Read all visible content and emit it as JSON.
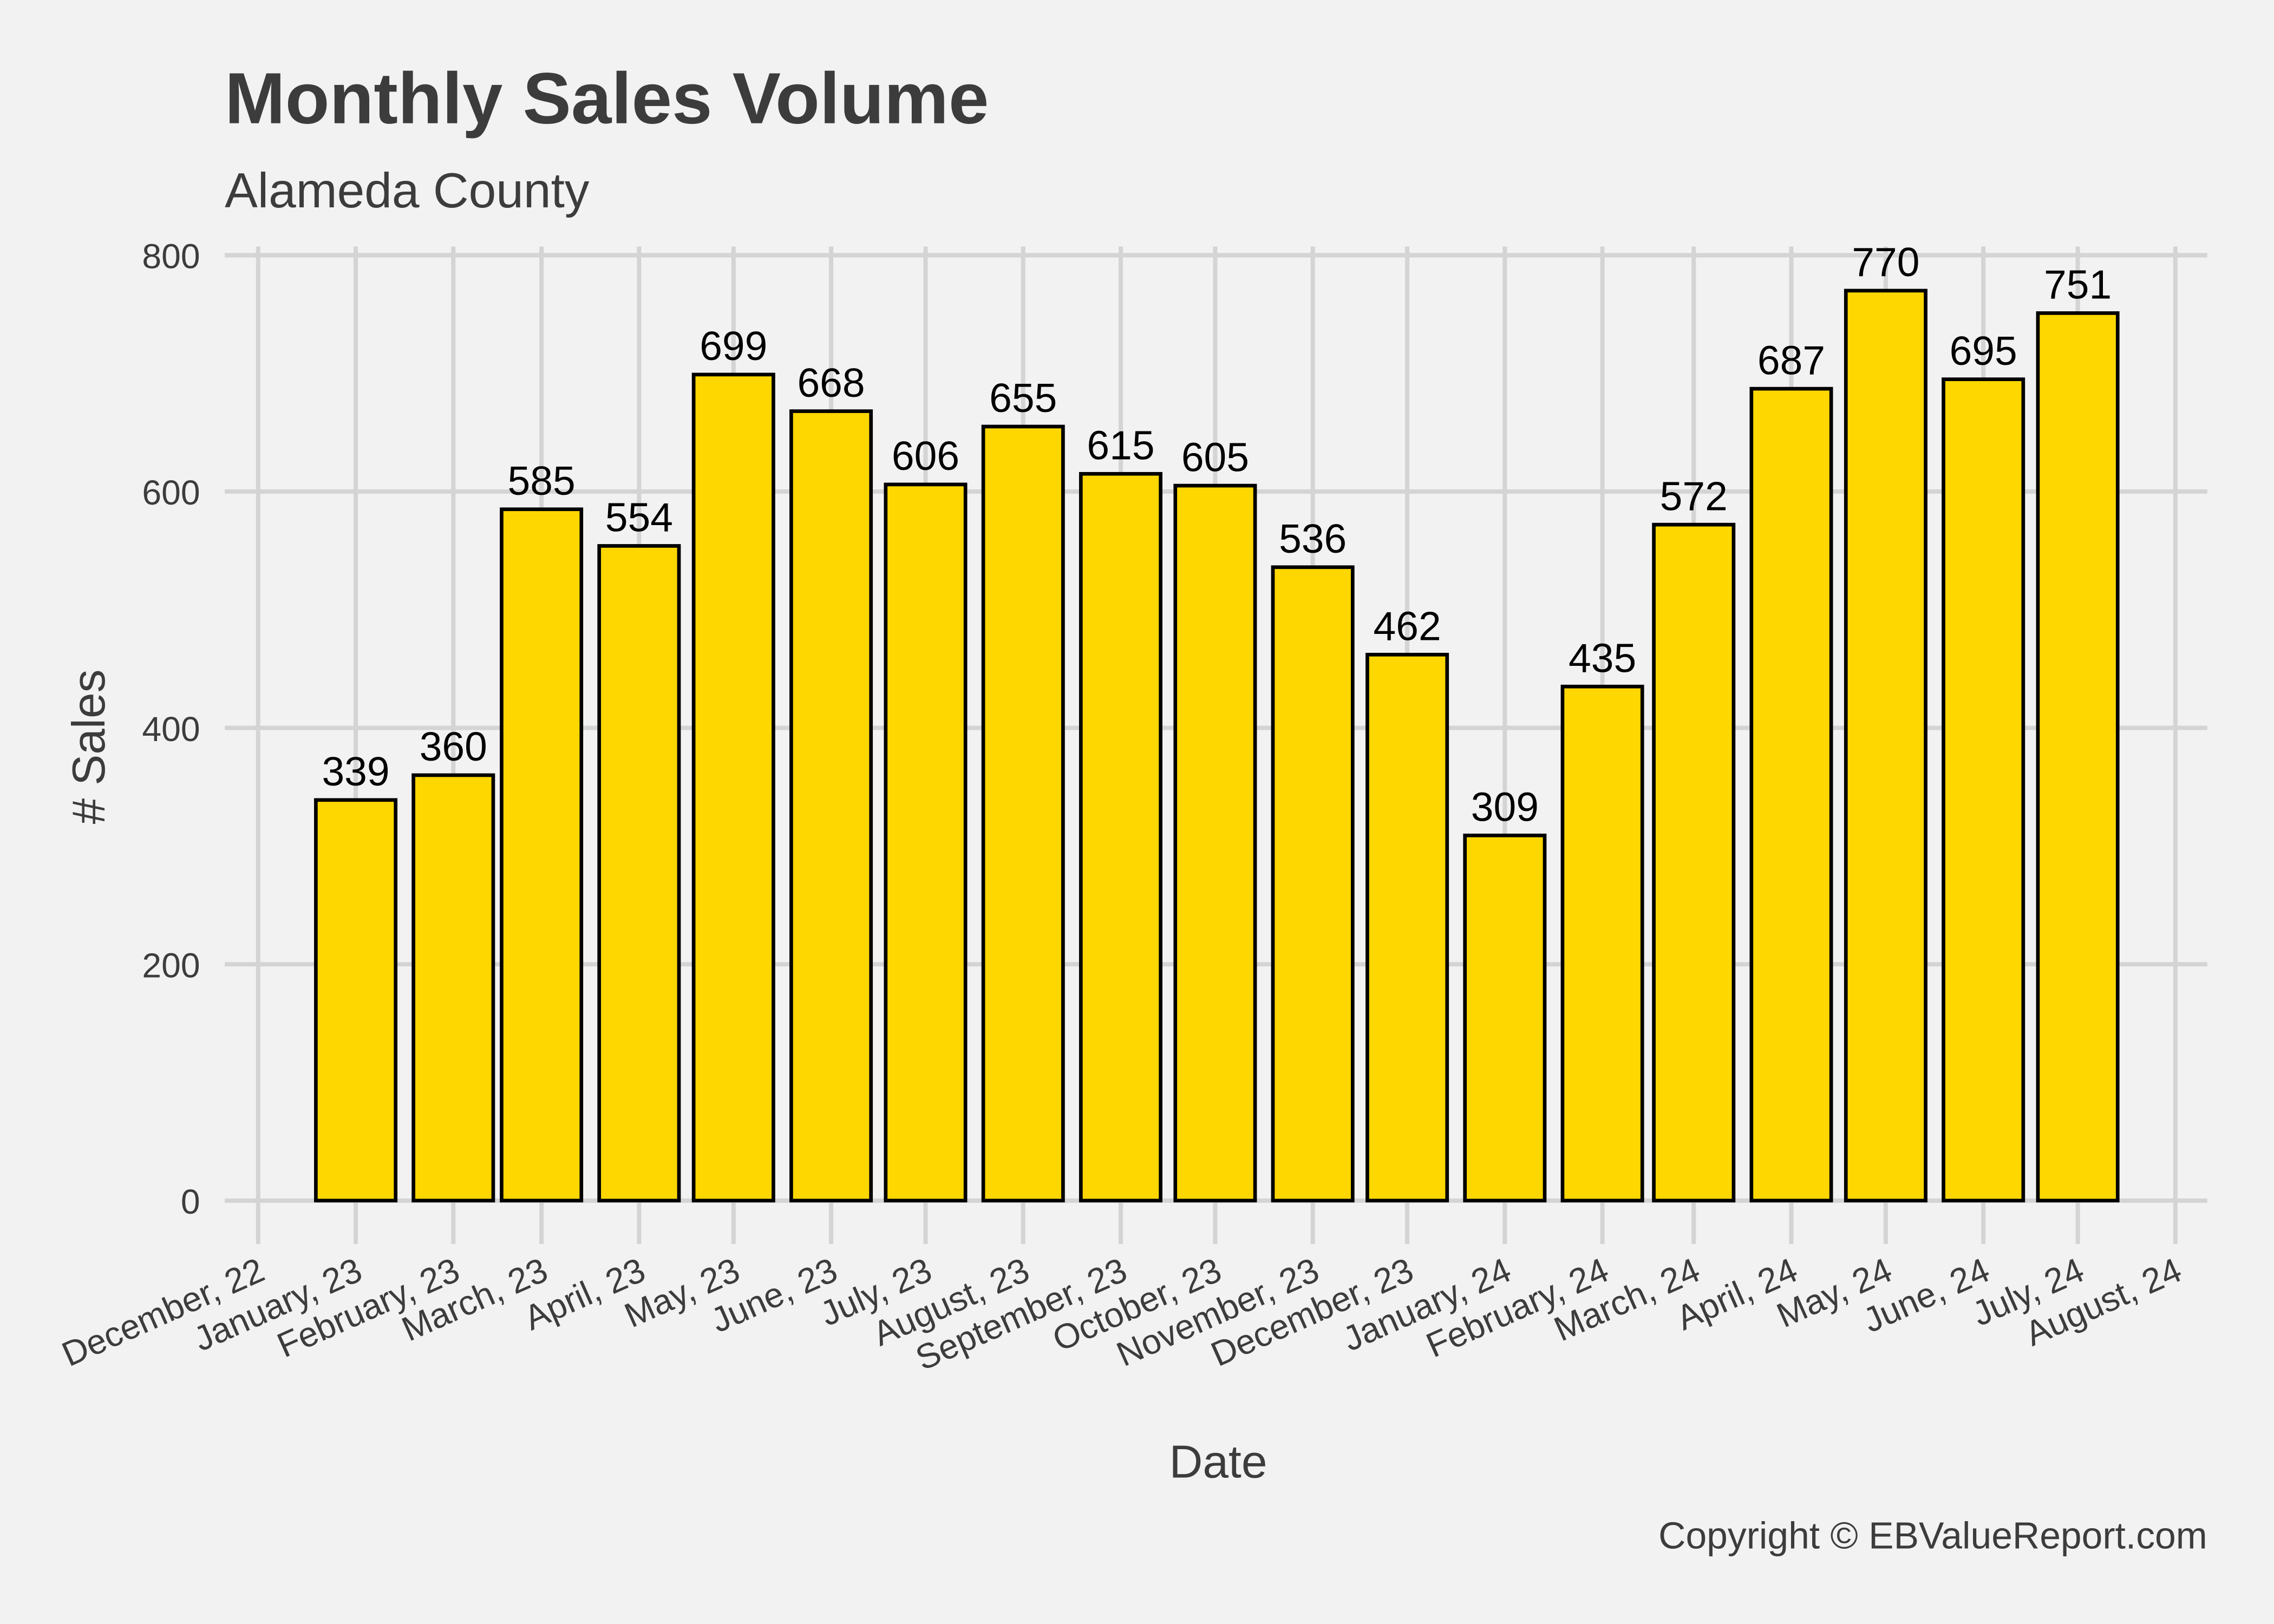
{
  "chart_data": {
    "type": "bar",
    "title": "Monthly Sales Volume",
    "subtitle": "Alameda County",
    "xlabel": "Date",
    "ylabel": "# Sales",
    "caption": "Copyright  © EBValueReport.com",
    "ylim": [
      0,
      800
    ],
    "yticks": [
      0,
      200,
      400,
      600,
      800
    ],
    "grid": true,
    "bar_color": "#ffd700",
    "bar_outline": "#000000",
    "background": "#f2f2f2",
    "xtick_dates": [
      "2022-12-01",
      "2023-01-01",
      "2023-02-01",
      "2023-03-01",
      "2023-04-01",
      "2023-05-01",
      "2023-06-01",
      "2023-07-01",
      "2023-08-01",
      "2023-09-01",
      "2023-10-01",
      "2023-11-01",
      "2023-12-01",
      "2024-01-01",
      "2024-02-01",
      "2024-03-01",
      "2024-04-01",
      "2024-05-01",
      "2024-06-01",
      "2024-07-01",
      "2024-08-01"
    ],
    "xtick_labels": [
      "December, 22",
      "January, 23",
      "February, 23",
      "March, 23",
      "April, 23",
      "May, 23",
      "June, 23",
      "July, 23",
      "August, 23",
      "September, 23",
      "October, 23",
      "November, 23",
      "December, 23",
      "January, 24",
      "February, 24",
      "March, 24",
      "April, 24",
      "May, 24",
      "June, 24",
      "July, 24",
      "August, 24"
    ],
    "categories": [
      "2023-01-01",
      "2023-02-01",
      "2023-03-01",
      "2023-04-01",
      "2023-05-01",
      "2023-06-01",
      "2023-07-01",
      "2023-08-01",
      "2023-09-01",
      "2023-10-01",
      "2023-11-01",
      "2023-12-01",
      "2024-01-01",
      "2024-02-01",
      "2024-03-01",
      "2024-04-01",
      "2024-05-01",
      "2024-06-01",
      "2024-07-01"
    ],
    "values": [
      339,
      360,
      585,
      554,
      699,
      668,
      606,
      655,
      615,
      605,
      536,
      462,
      309,
      435,
      572,
      687,
      770,
      695,
      751
    ]
  }
}
